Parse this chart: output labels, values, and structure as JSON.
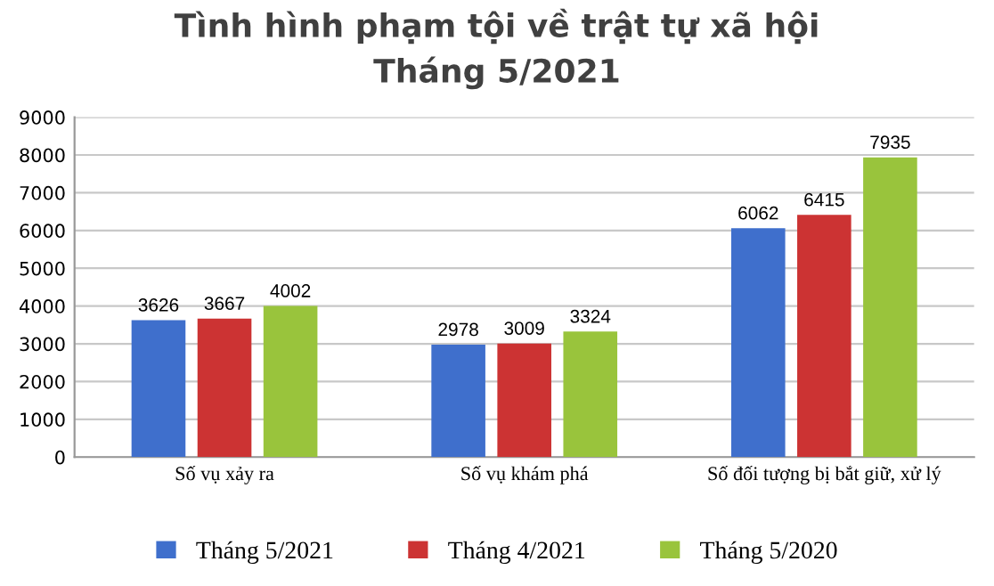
{
  "chart_data": {
    "type": "bar",
    "title": "Tình hình phạm tội về trật tự xã hội\nTháng 5/2021",
    "categories": [
      "Số vụ xảy ra",
      "Số vụ khám phá",
      "Số đối tượng bị bắt giữ, xử lý"
    ],
    "series": [
      {
        "name": "Tháng 5/2021",
        "color": "#3f6fcc",
        "values": [
          3626,
          2978,
          6062
        ]
      },
      {
        "name": "Tháng 4/2021",
        "color": "#cc3333",
        "values": [
          3667,
          3009,
          6415
        ]
      },
      {
        "name": "Tháng 5/2020",
        "color": "#99c43c",
        "values": [
          4002,
          3324,
          7935
        ]
      }
    ],
    "ylim": [
      0,
      9000
    ],
    "yticks": [
      0,
      1000,
      2000,
      3000,
      4000,
      5000,
      6000,
      7000,
      8000,
      9000
    ],
    "grid": "y",
    "legend": "bottom",
    "data_labels": true
  }
}
